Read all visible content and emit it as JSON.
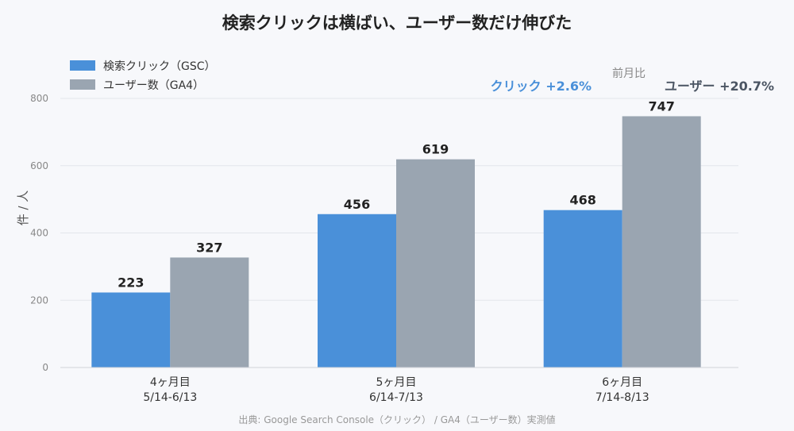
{
  "chart_data": {
    "type": "bar",
    "title": "検索クリックは横ばい、ユーザー数だけ伸びた",
    "ylabel": "件 / 人",
    "xlabel": "",
    "ylim": [
      0,
      800
    ],
    "yticks": [
      "0",
      "200",
      "400",
      "600",
      "800"
    ],
    "categories": [
      [
        "4ヶ月目",
        "5/14-6/13"
      ],
      [
        "5ヶ月目",
        "6/14-7/13"
      ],
      [
        "6ヶ月目",
        "7/14-8/13"
      ]
    ],
    "series": [
      {
        "name": "検索クリック（GSC）",
        "values": [
          223,
          456,
          468
        ],
        "color": "#4a90d9"
      },
      {
        "name": "ユーザー数（GA4）",
        "values": [
          327,
          619,
          747
        ],
        "color": "#9aa5b1"
      }
    ],
    "grid": true,
    "legend_position": "top-left",
    "annotations": {
      "header": "前月比",
      "clicks_change": "クリック +2.6%",
      "users_change": "ユーザー +20.7%",
      "clicks_color": "#4a90d9",
      "users_color": "#4b5563"
    },
    "source": "出典: Google Search Console（クリック） / GA4（ユーザー数）実測値"
  }
}
